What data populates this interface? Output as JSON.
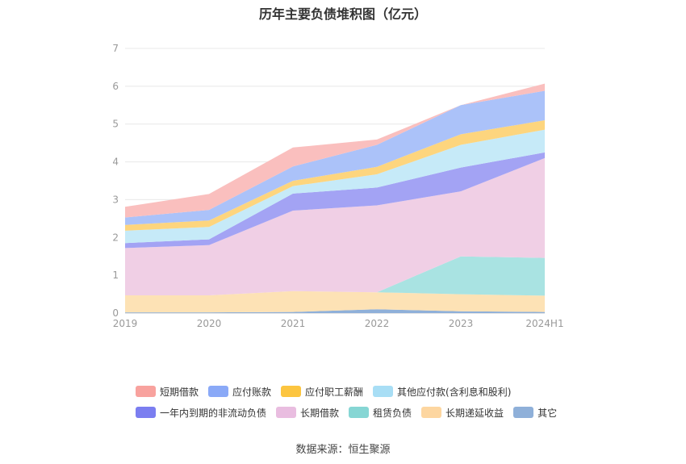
{
  "title": "历年主要负债堆积图（亿元）",
  "source": "数据来源：恒生聚源",
  "chart_data": {
    "type": "area",
    "stacked": true,
    "categories": [
      "2019",
      "2020",
      "2021",
      "2022",
      "2023",
      "2024H1"
    ],
    "ylim": [
      0,
      7
    ],
    "yticks": [
      0,
      1,
      2,
      3,
      4,
      5,
      6,
      7
    ],
    "grid": true,
    "legend_position": "bottom",
    "series": [
      {
        "name": "其它",
        "color": "#8fb0d9",
        "values": [
          0.02,
          0.02,
          0.03,
          0.1,
          0.05,
          0.03
        ]
      },
      {
        "name": "长期递延收益",
        "color": "#fde2b5",
        "values": [
          0.45,
          0.45,
          0.55,
          0.45,
          0.45,
          0.43
        ]
      },
      {
        "name": "租赁负债",
        "color": "#a9e3e2",
        "values": [
          0.0,
          0.0,
          0.0,
          0.0,
          1.0,
          1.0
        ]
      },
      {
        "name": "长期借款",
        "color": "#f0cfe5",
        "values": [
          1.25,
          1.33,
          2.13,
          2.3,
          1.72,
          2.64
        ]
      },
      {
        "name": "一年内到期的非流动负债",
        "color": "#a3a3f4",
        "values": [
          0.13,
          0.15,
          0.45,
          0.47,
          0.63,
          0.15
        ]
      },
      {
        "name": "其他应付款(含利息和股利)",
        "color": "#c6eaf8",
        "values": [
          0.33,
          0.33,
          0.2,
          0.35,
          0.6,
          0.6
        ]
      },
      {
        "name": "应付职工薪酬",
        "color": "#fdd57e",
        "values": [
          0.15,
          0.17,
          0.14,
          0.2,
          0.28,
          0.25
        ]
      },
      {
        "name": "应付账款",
        "color": "#abc2f9",
        "values": [
          0.2,
          0.28,
          0.38,
          0.58,
          0.77,
          0.78
        ]
      },
      {
        "name": "短期借款",
        "color": "#fabfbe",
        "values": [
          0.28,
          0.42,
          0.5,
          0.14,
          0.0,
          0.19
        ]
      }
    ]
  },
  "legend": {
    "row1": [
      {
        "name": "短期借款",
        "color": "#f8a29e"
      },
      {
        "name": "应付账款",
        "color": "#8aa9f7"
      },
      {
        "name": "应付职工薪酬",
        "color": "#fcc540"
      },
      {
        "name": "其他应付款(含利息和股利)",
        "color": "#a8def5"
      }
    ],
    "row2": [
      {
        "name": "一年内到期的非流动负债",
        "color": "#7b7ef0"
      },
      {
        "name": "长期借款",
        "color": "#e9bde0"
      },
      {
        "name": "租赁负债",
        "color": "#86d6d4"
      },
      {
        "name": "长期递延收益",
        "color": "#fdd6a0"
      },
      {
        "name": "其它",
        "color": "#8fb0d9"
      }
    ]
  }
}
